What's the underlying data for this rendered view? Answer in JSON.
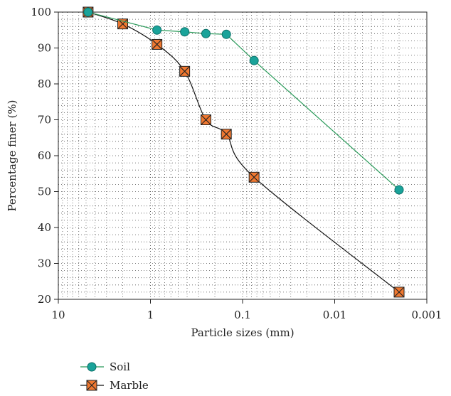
{
  "chart_data": {
    "type": "line",
    "title": "",
    "xlabel": "Particle sizes (mm)",
    "ylabel": "Percentage finer (%)",
    "x_scale": "log",
    "x_reversed": true,
    "xlim": [
      10,
      0.001
    ],
    "ylim": [
      20,
      100
    ],
    "x_ticks": [
      10,
      1,
      0.1,
      0.01,
      0.001
    ],
    "x_tick_labels": [
      "10",
      "1",
      "0.1",
      "0.01",
      "0.001"
    ],
    "y_ticks": [
      20,
      30,
      40,
      50,
      60,
      70,
      80,
      90,
      100
    ],
    "y_tick_labels": [
      "20",
      "30",
      "40",
      "50",
      "60",
      "70",
      "80",
      "90",
      "100"
    ],
    "grid": "dotted, minor log gridlines",
    "legend_position": "below plot, left",
    "series": [
      {
        "name": "Soil",
        "marker": "circle",
        "color": "#1aa39a",
        "line_color": "#2a9a5a",
        "x": [
          4.75,
          0.85,
          0.425,
          0.25,
          0.15,
          0.075,
          0.002
        ],
        "y": [
          100,
          95,
          94.5,
          94,
          93.8,
          86.5,
          50.5
        ]
      },
      {
        "name": "Marble",
        "marker": "x-square",
        "color": "#f07830",
        "line_color": "#111111",
        "x": [
          4.75,
          2,
          0.85,
          0.425,
          0.25,
          0.15,
          0.075,
          0.002
        ],
        "y": [
          100,
          96.7,
          91,
          83.5,
          70,
          66,
          54,
          22
        ]
      }
    ]
  }
}
